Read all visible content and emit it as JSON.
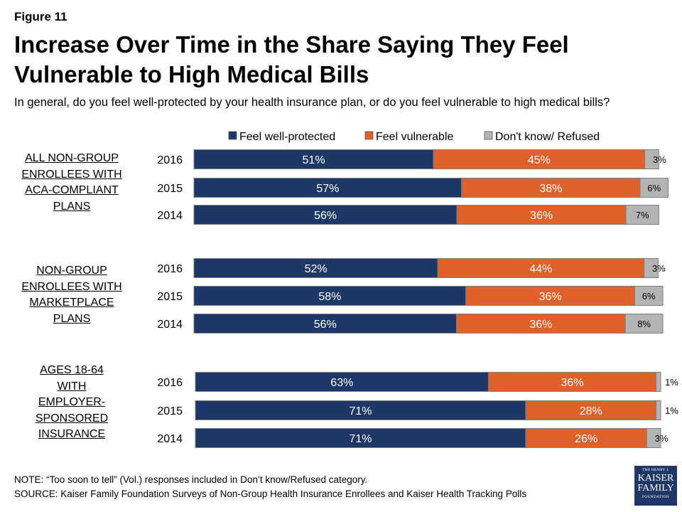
{
  "figure_label": "Figure 11",
  "title": "Increase Over Time in the Share Saying They Feel Vulnerable to High Medical Bills",
  "subtitle": "In general, do you feel well-protected by your health insurance plan, or do you feel vulnerable to high medical bills?",
  "note": "NOTE: “Too soon to tell” (Vol.) responses included in Don’t know/Refused category.",
  "source": "SOURCE: Kaiser Family Foundation Surveys of Non-Group Health Insurance Enrollees and Kaiser Health Tracking Polls",
  "logo": {
    "line1": "THE HENRY J.",
    "line2": "KAISER",
    "line3": "FAMILY",
    "line4": "FOUNDATION"
  },
  "colors": {
    "protected": "#1d3866",
    "vulnerable": "#e0602a",
    "dontknow": "#b4b4b4",
    "border": "#7f7f7f"
  },
  "chart_data": {
    "type": "bar",
    "orientation": "horizontal",
    "stacked": true,
    "legend_position": "top",
    "series": [
      {
        "name": "Feel well-protected",
        "color": "#1d3866"
      },
      {
        "name": "Feel vulnerable",
        "color": "#e0602a"
      },
      {
        "name": "Don't know/ Refused",
        "color": "#b4b4b4"
      }
    ],
    "groups": [
      {
        "label_lines": [
          "ALL NON-GROUP",
          "ENROLLEES WITH",
          "ACA-COMPLIANT",
          "PLANS"
        ],
        "rows": [
          {
            "year": "2016",
            "values": [
              51,
              45,
              3
            ],
            "labels": [
              "51%",
              "45%",
              "3%"
            ]
          },
          {
            "year": "2015",
            "values": [
              57,
              38,
              6
            ],
            "labels": [
              "57%",
              "38%",
              "6%"
            ]
          },
          {
            "year": "2014",
            "values": [
              56,
              36,
              7
            ],
            "labels": [
              "56%",
              "36%",
              "7%"
            ]
          }
        ]
      },
      {
        "label_lines": [
          "NON-GROUP",
          "ENROLLEES WITH",
          "MARKETPLACE",
          "PLANS"
        ],
        "rows": [
          {
            "year": "2016",
            "values": [
              52,
              44,
              3
            ],
            "labels": [
              "52%",
              "44%",
              "3%"
            ]
          },
          {
            "year": "2015",
            "values": [
              58,
              36,
              6
            ],
            "labels": [
              "58%",
              "36%",
              "6%"
            ]
          },
          {
            "year": "2014",
            "values": [
              56,
              36,
              8
            ],
            "labels": [
              "56%",
              "36%",
              "8%"
            ]
          }
        ]
      },
      {
        "label_lines": [
          "AGES 18-64",
          "WITH",
          "EMPLOYER-",
          "SPONSORED",
          "INSURANCE"
        ],
        "rows": [
          {
            "year": "2016",
            "values": [
              63,
              36,
              1
            ],
            "labels": [
              "63%",
              "36%",
              "1%"
            ]
          },
          {
            "year": "2015",
            "values": [
              71,
              28,
              1
            ],
            "labels": [
              "71%",
              "28%",
              "1%"
            ]
          },
          {
            "year": "2014",
            "values": [
              71,
              26,
              3
            ],
            "labels": [
              "71%",
              "26%",
              "3%"
            ]
          }
        ]
      }
    ]
  }
}
